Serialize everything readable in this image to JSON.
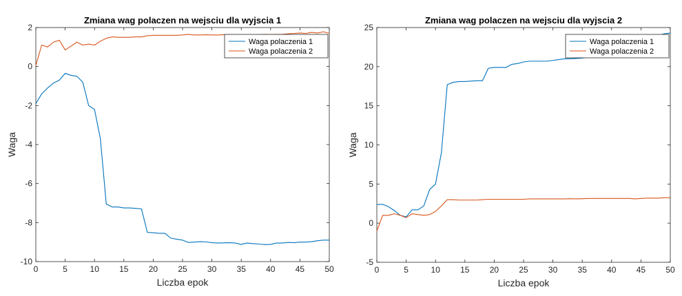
{
  "chart_data": [
    {
      "type": "line",
      "title": "Zmiana wag polaczen na wejsciu dla wyjscia 1",
      "xlabel": "Liczba epok",
      "ylabel": "Waga",
      "xlim": [
        0,
        50
      ],
      "ylim": [
        -10,
        2
      ],
      "xticks": [
        0,
        5,
        10,
        15,
        20,
        25,
        30,
        35,
        40,
        45,
        50
      ],
      "yticks": [
        -10,
        -8,
        -6,
        -4,
        -2,
        0,
        2
      ],
      "legend_position": "top-right",
      "grid": false,
      "x": [
        0,
        1,
        2,
        3,
        4,
        5,
        6,
        7,
        8,
        9,
        10,
        11,
        12,
        13,
        14,
        15,
        16,
        17,
        18,
        19,
        20,
        21,
        22,
        23,
        24,
        25,
        26,
        27,
        28,
        29,
        30,
        31,
        32,
        33,
        34,
        35,
        36,
        37,
        38,
        39,
        40,
        41,
        42,
        43,
        44,
        45,
        46,
        47,
        48,
        49,
        50
      ],
      "series": [
        {
          "name": "Waga polaczenia 1",
          "color": "#0072BD",
          "values": [
            -1.9,
            -1.4,
            -1.1,
            -0.85,
            -0.7,
            -0.35,
            -0.45,
            -0.5,
            -0.8,
            -2.0,
            -2.2,
            -3.7,
            -7.05,
            -7.2,
            -7.2,
            -7.25,
            -7.25,
            -7.27,
            -7.3,
            -8.5,
            -8.52,
            -8.55,
            -8.55,
            -8.8,
            -8.85,
            -8.9,
            -9.02,
            -9.0,
            -8.98,
            -8.99,
            -9.03,
            -9.05,
            -9.04,
            -9.03,
            -9.05,
            -9.12,
            -9.05,
            -9.08,
            -9.1,
            -9.13,
            -9.12,
            -9.05,
            -9.05,
            -9.02,
            -9.03,
            -9.0,
            -9.0,
            -8.98,
            -8.93,
            -8.9,
            -8.9
          ]
        },
        {
          "name": "Waga polaczenia 2",
          "color": "#D95319",
          "values": [
            0.05,
            1.1,
            1.0,
            1.25,
            1.35,
            0.85,
            1.05,
            1.25,
            1.1,
            1.15,
            1.1,
            1.3,
            1.45,
            1.52,
            1.5,
            1.5,
            1.5,
            1.52,
            1.52,
            1.58,
            1.6,
            1.6,
            1.6,
            1.6,
            1.6,
            1.62,
            1.65,
            1.62,
            1.62,
            1.63,
            1.62,
            1.62,
            1.63,
            1.64,
            1.62,
            1.62,
            1.63,
            1.63,
            1.63,
            1.65,
            1.64,
            1.65,
            1.65,
            1.68,
            1.7,
            1.72,
            1.7,
            1.75,
            1.72,
            1.78,
            1.7
          ]
        }
      ]
    },
    {
      "type": "line",
      "title": "Zmiana wag polaczen na wejsciu dla wyjscia 2",
      "xlabel": "Liczba epok",
      "ylabel": "Waga",
      "xlim": [
        0,
        50
      ],
      "ylim": [
        -5,
        25
      ],
      "xticks": [
        0,
        5,
        10,
        15,
        20,
        25,
        30,
        35,
        40,
        45,
        50
      ],
      "yticks": [
        -5,
        0,
        5,
        10,
        15,
        20,
        25
      ],
      "legend_position": "top-right",
      "grid": false,
      "x": [
        0,
        1,
        2,
        3,
        4,
        5,
        6,
        7,
        8,
        9,
        10,
        11,
        12,
        13,
        14,
        15,
        16,
        17,
        18,
        19,
        20,
        21,
        22,
        23,
        24,
        25,
        26,
        27,
        28,
        29,
        30,
        31,
        32,
        33,
        34,
        35,
        36,
        37,
        38,
        39,
        40,
        41,
        42,
        43,
        44,
        45,
        46,
        47,
        48,
        49,
        50
      ],
      "series": [
        {
          "name": "Waga polaczenia 1",
          "color": "#0072BD",
          "values": [
            2.4,
            2.4,
            2.1,
            1.6,
            1.0,
            0.8,
            1.7,
            1.7,
            2.2,
            4.3,
            5.0,
            9.0,
            17.7,
            18.0,
            18.1,
            18.1,
            18.15,
            18.2,
            18.2,
            19.8,
            19.9,
            19.9,
            19.9,
            20.3,
            20.4,
            20.6,
            20.7,
            20.7,
            20.7,
            20.7,
            20.8,
            20.9,
            21.0,
            21.0,
            21.05,
            21.1,
            21.2,
            21.3,
            21.4,
            21.5,
            21.6,
            21.7,
            21.8,
            21.9,
            22.0,
            22.3,
            22.8,
            23.3,
            24.0,
            24.2,
            24.3
          ]
        },
        {
          "name": "Waga polaczenia 2",
          "color": "#D95319",
          "values": [
            -1.0,
            1.0,
            1.0,
            1.2,
            1.0,
            0.7,
            1.2,
            1.1,
            1.0,
            1.1,
            1.5,
            2.2,
            3.0,
            3.0,
            2.95,
            2.95,
            2.95,
            2.95,
            3.0,
            3.05,
            3.05,
            3.05,
            3.05,
            3.05,
            3.05,
            3.05,
            3.1,
            3.1,
            3.1,
            3.1,
            3.1,
            3.1,
            3.1,
            3.12,
            3.1,
            3.12,
            3.15,
            3.15,
            3.15,
            3.15,
            3.15,
            3.15,
            3.15,
            3.15,
            3.1,
            3.15,
            3.2,
            3.2,
            3.2,
            3.25,
            3.25
          ]
        }
      ]
    }
  ]
}
